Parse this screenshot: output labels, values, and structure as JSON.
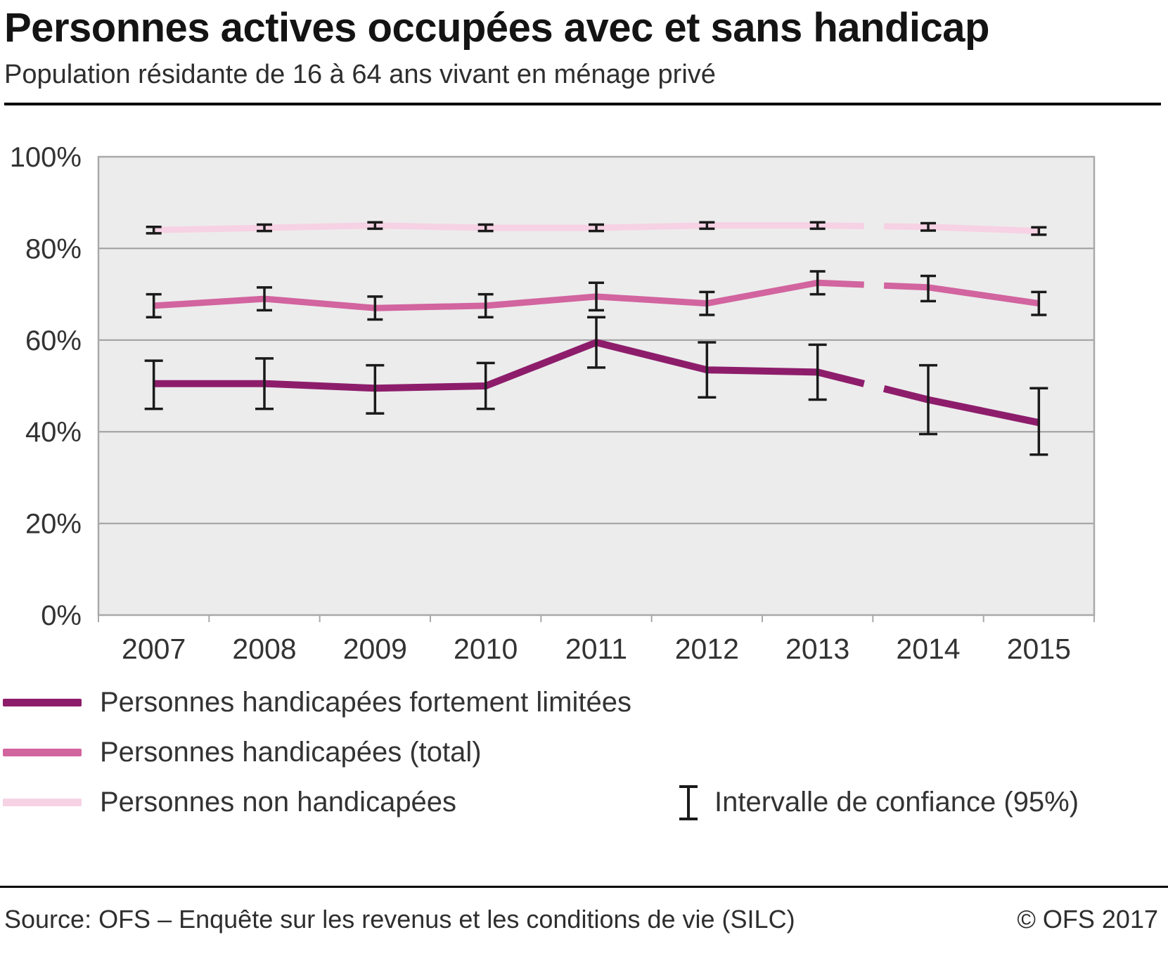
{
  "header": {
    "title": "Personnes actives occupées avec et sans handicap",
    "subtitle": "Population résidante de 16 à 64 ans vivant en ménage privé"
  },
  "chart_data": {
    "type": "line",
    "title": "Personnes actives occupées avec et sans handicap",
    "x": [
      2007,
      2008,
      2009,
      2010,
      2011,
      2012,
      2013,
      2014,
      2015
    ],
    "ylim": [
      0,
      100
    ],
    "y_ticks": [
      0,
      20,
      40,
      60,
      80,
      100
    ],
    "y_grid": [
      20,
      40,
      60,
      80
    ],
    "y_tick_suffix": "%",
    "grid": true,
    "plot_bg": "#ececec",
    "axis_color": "#a9a9a9",
    "grid_color": "#9d9d9d",
    "error_bar_color": "#1a1a1a",
    "break_after_index": 6,
    "legend_position": "bottom-left",
    "series": [
      {
        "name": "Personnes handicapées fortement limitées",
        "color": "#8d1d6b",
        "values": [
          50.5,
          50.5,
          49.5,
          50,
          59.5,
          53.5,
          53,
          47,
          42
        ],
        "ci_low": [
          45,
          45,
          44,
          45,
          54,
          47.5,
          47,
          39.5,
          35
        ],
        "ci_high": [
          55.5,
          56,
          54.5,
          55,
          65,
          59.5,
          59,
          54.5,
          49.5
        ]
      },
      {
        "name": "Personnes handicapées (total)",
        "color": "#d2649f",
        "values": [
          67.5,
          69,
          67,
          67.5,
          69.5,
          68,
          72.5,
          71.5,
          68
        ],
        "ci_low": [
          65,
          66.5,
          64.5,
          65,
          66.5,
          65.5,
          70,
          68.5,
          65.5
        ],
        "ci_high": [
          70,
          71.5,
          69.5,
          70,
          72.5,
          70.5,
          75,
          74,
          70.5
        ]
      },
      {
        "name": "Personnes non handicapées",
        "color": "#f6d2e4",
        "values": [
          84,
          84.5,
          85,
          84.5,
          84.5,
          85,
          85,
          84.7,
          83.8
        ],
        "ci_low": [
          83.3,
          83.8,
          84.3,
          83.8,
          83.8,
          84.3,
          84.3,
          83.9,
          83
        ],
        "ci_high": [
          84.7,
          85.2,
          85.7,
          85.2,
          85.2,
          85.7,
          85.7,
          85.5,
          84.6
        ]
      }
    ],
    "ci_label": "Intervalle de confiance (95%)"
  },
  "footer": {
    "source": "Source: OFS – Enquête sur les revenus et les conditions de vie (SILC)",
    "copyright": "© OFS 2017"
  }
}
